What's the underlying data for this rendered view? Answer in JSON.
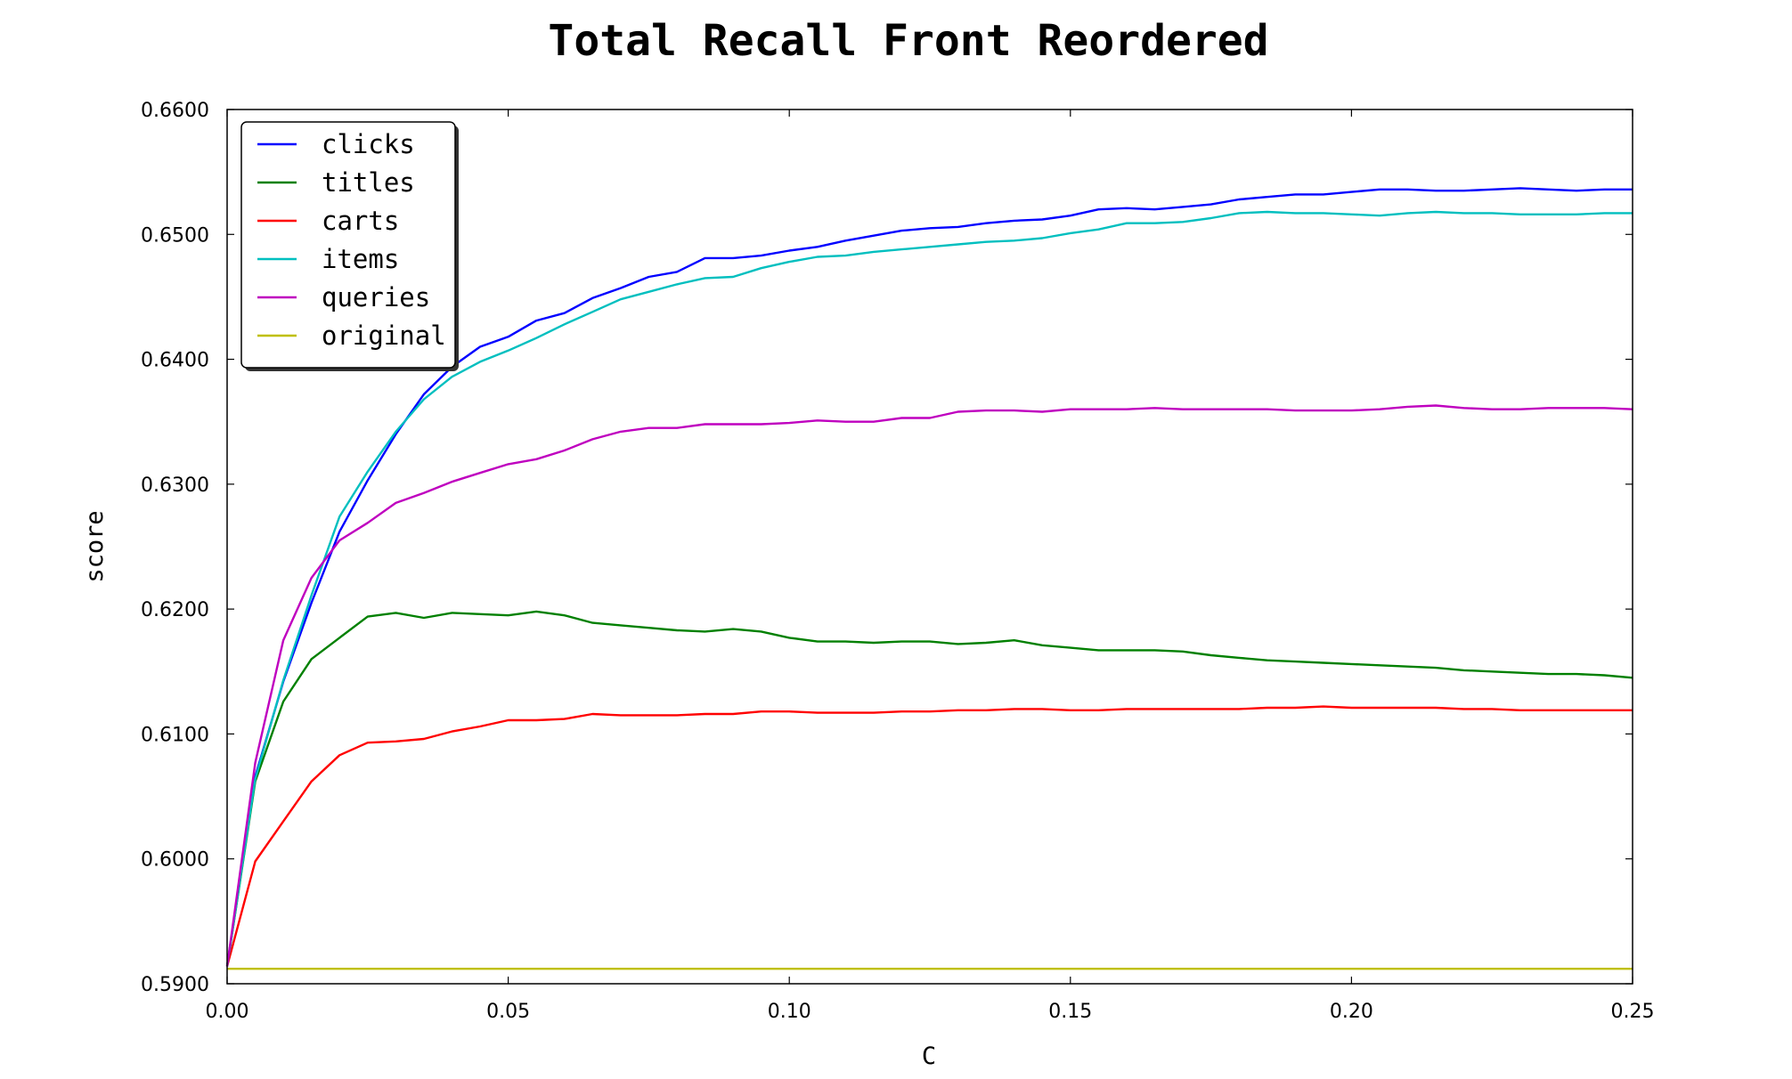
{
  "chart_data": {
    "type": "line",
    "title": "Total Recall Front Reordered",
    "xlabel": "C",
    "ylabel": "score",
    "xlim": [
      0.0,
      0.25
    ],
    "ylim": [
      0.59,
      0.66
    ],
    "x_ticks": [
      "0.00",
      "0.05",
      "0.10",
      "0.15",
      "0.20",
      "0.25"
    ],
    "y_ticks": [
      "0.5900",
      "0.6000",
      "0.6100",
      "0.6200",
      "0.6300",
      "0.6400",
      "0.6500",
      "0.6600"
    ],
    "grid": false,
    "legend_position": "top-left",
    "x": [
      0.0,
      0.005,
      0.01,
      0.015,
      0.02,
      0.025,
      0.03,
      0.035,
      0.04,
      0.045,
      0.05,
      0.055,
      0.06,
      0.065,
      0.07,
      0.075,
      0.08,
      0.085,
      0.09,
      0.095,
      0.1,
      0.105,
      0.11,
      0.115,
      0.12,
      0.125,
      0.13,
      0.135,
      0.14,
      0.145,
      0.15,
      0.155,
      0.16,
      0.165,
      0.17,
      0.175,
      0.18,
      0.185,
      0.19,
      0.195,
      0.2,
      0.205,
      0.21,
      0.215,
      0.22,
      0.225,
      0.23,
      0.235,
      0.24,
      0.245,
      0.25
    ],
    "series": [
      {
        "name": "clicks",
        "color": "#0000ff",
        "values": [
          0.5914,
          0.6066,
          0.6142,
          0.6205,
          0.6262,
          0.6303,
          0.634,
          0.6372,
          0.6394,
          0.641,
          0.6418,
          0.6431,
          0.6437,
          0.6449,
          0.6457,
          0.6466,
          0.647,
          0.6481,
          0.6481,
          0.6483,
          0.6487,
          0.649,
          0.6495,
          0.6499,
          0.6503,
          0.6505,
          0.6506,
          0.6509,
          0.6511,
          0.6512,
          0.6515,
          0.652,
          0.6521,
          0.652,
          0.6522,
          0.6524,
          0.6528,
          0.653,
          0.6532,
          0.6532,
          0.6534,
          0.6536,
          0.6536,
          0.6535,
          0.6535,
          0.6536,
          0.6537,
          0.6536,
          0.6535,
          0.6536,
          0.6536
        ]
      },
      {
        "name": "titles",
        "color": "#008000",
        "values": [
          0.5914,
          0.6062,
          0.6126,
          0.616,
          0.6177,
          0.6194,
          0.6197,
          0.6193,
          0.6197,
          0.6196,
          0.6195,
          0.6198,
          0.6195,
          0.6189,
          0.6187,
          0.6185,
          0.6183,
          0.6182,
          0.6184,
          0.6182,
          0.6177,
          0.6174,
          0.6174,
          0.6173,
          0.6174,
          0.6174,
          0.6172,
          0.6173,
          0.6175,
          0.6171,
          0.6169,
          0.6167,
          0.6167,
          0.6167,
          0.6166,
          0.6163,
          0.6161,
          0.6159,
          0.6158,
          0.6157,
          0.6156,
          0.6155,
          0.6154,
          0.6153,
          0.6151,
          0.615,
          0.6149,
          0.6148,
          0.6148,
          0.6147,
          0.6145
        ]
      },
      {
        "name": "carts",
        "color": "#ff0000",
        "values": [
          0.5914,
          0.5998,
          0.603,
          0.6062,
          0.6083,
          0.6093,
          0.6094,
          0.6096,
          0.6102,
          0.6106,
          0.6111,
          0.6111,
          0.6112,
          0.6116,
          0.6115,
          0.6115,
          0.6115,
          0.6116,
          0.6116,
          0.6118,
          0.6118,
          0.6117,
          0.6117,
          0.6117,
          0.6118,
          0.6118,
          0.6119,
          0.6119,
          0.612,
          0.612,
          0.6119,
          0.6119,
          0.612,
          0.612,
          0.612,
          0.612,
          0.612,
          0.6121,
          0.6121,
          0.6122,
          0.6121,
          0.6121,
          0.6121,
          0.6121,
          0.612,
          0.612,
          0.6119,
          0.6119,
          0.6119,
          0.6119,
          0.6119
        ]
      },
      {
        "name": "items",
        "color": "#00bfbf",
        "values": [
          0.5914,
          0.6064,
          0.6143,
          0.6211,
          0.6274,
          0.631,
          0.6342,
          0.6368,
          0.6386,
          0.6398,
          0.6407,
          0.6417,
          0.6428,
          0.6438,
          0.6448,
          0.6454,
          0.646,
          0.6465,
          0.6466,
          0.6473,
          0.6478,
          0.6482,
          0.6483,
          0.6486,
          0.6488,
          0.649,
          0.6492,
          0.6494,
          0.6495,
          0.6497,
          0.6501,
          0.6504,
          0.6509,
          0.6509,
          0.651,
          0.6513,
          0.6517,
          0.6518,
          0.6517,
          0.6517,
          0.6516,
          0.6515,
          0.6517,
          0.6518,
          0.6517,
          0.6517,
          0.6516,
          0.6516,
          0.6516,
          0.6517,
          0.6517
        ]
      },
      {
        "name": "queries",
        "color": "#bf00bf",
        "values": [
          0.5914,
          0.6077,
          0.6175,
          0.6225,
          0.6255,
          0.6269,
          0.6285,
          0.6293,
          0.6302,
          0.6309,
          0.6316,
          0.632,
          0.6327,
          0.6336,
          0.6342,
          0.6345,
          0.6345,
          0.6348,
          0.6348,
          0.6348,
          0.6349,
          0.6351,
          0.635,
          0.635,
          0.6353,
          0.6353,
          0.6358,
          0.6359,
          0.6359,
          0.6358,
          0.636,
          0.636,
          0.636,
          0.6361,
          0.636,
          0.636,
          0.636,
          0.636,
          0.6359,
          0.6359,
          0.6359,
          0.636,
          0.6362,
          0.6363,
          0.6361,
          0.636,
          0.636,
          0.6361,
          0.6361,
          0.6361,
          0.636
        ]
      },
      {
        "name": "original",
        "color": "#bfbf00",
        "values": [
          0.5912,
          0.5912,
          0.5912,
          0.5912,
          0.5912,
          0.5912,
          0.5912,
          0.5912,
          0.5912,
          0.5912,
          0.5912,
          0.5912,
          0.5912,
          0.5912,
          0.5912,
          0.5912,
          0.5912,
          0.5912,
          0.5912,
          0.5912,
          0.5912,
          0.5912,
          0.5912,
          0.5912,
          0.5912,
          0.5912,
          0.5912,
          0.5912,
          0.5912,
          0.5912,
          0.5912,
          0.5912,
          0.5912,
          0.5912,
          0.5912,
          0.5912,
          0.5912,
          0.5912,
          0.5912,
          0.5912,
          0.5912,
          0.5912,
          0.5912,
          0.5912,
          0.5912,
          0.5912,
          0.5912,
          0.5912,
          0.5912,
          0.5912,
          0.5912
        ]
      }
    ]
  }
}
